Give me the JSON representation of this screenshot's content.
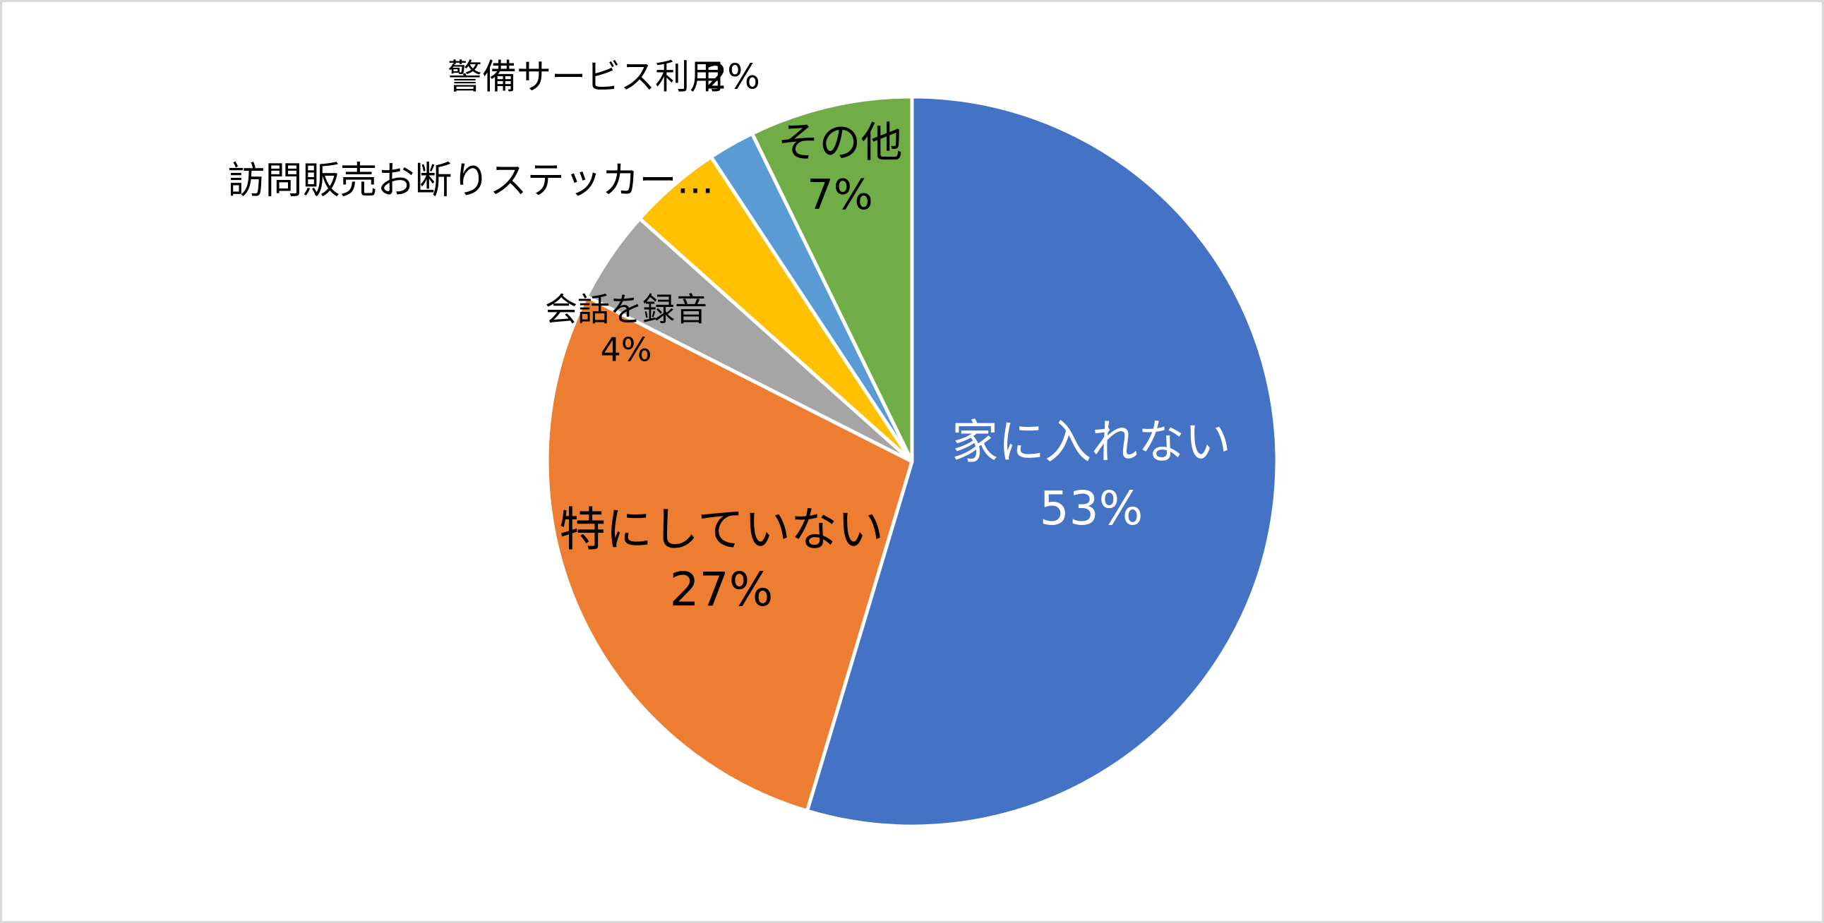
{
  "chart_data": {
    "type": "pie",
    "categories": [
      "家に入れない",
      "特にしていない",
      "会話を録音",
      "訪問販売お断りステッカー…",
      "警備サービス利用",
      "その他"
    ],
    "values": [
      53,
      27,
      4,
      4,
      2,
      7
    ],
    "value_labels": [
      "53%",
      "27%",
      "4%",
      null,
      "2%",
      "7%"
    ],
    "colors": [
      "#4472c4",
      "#ed7d31",
      "#a5a5a5",
      "#ffc000",
      "#5b9bd5",
      "#70ad47"
    ]
  }
}
